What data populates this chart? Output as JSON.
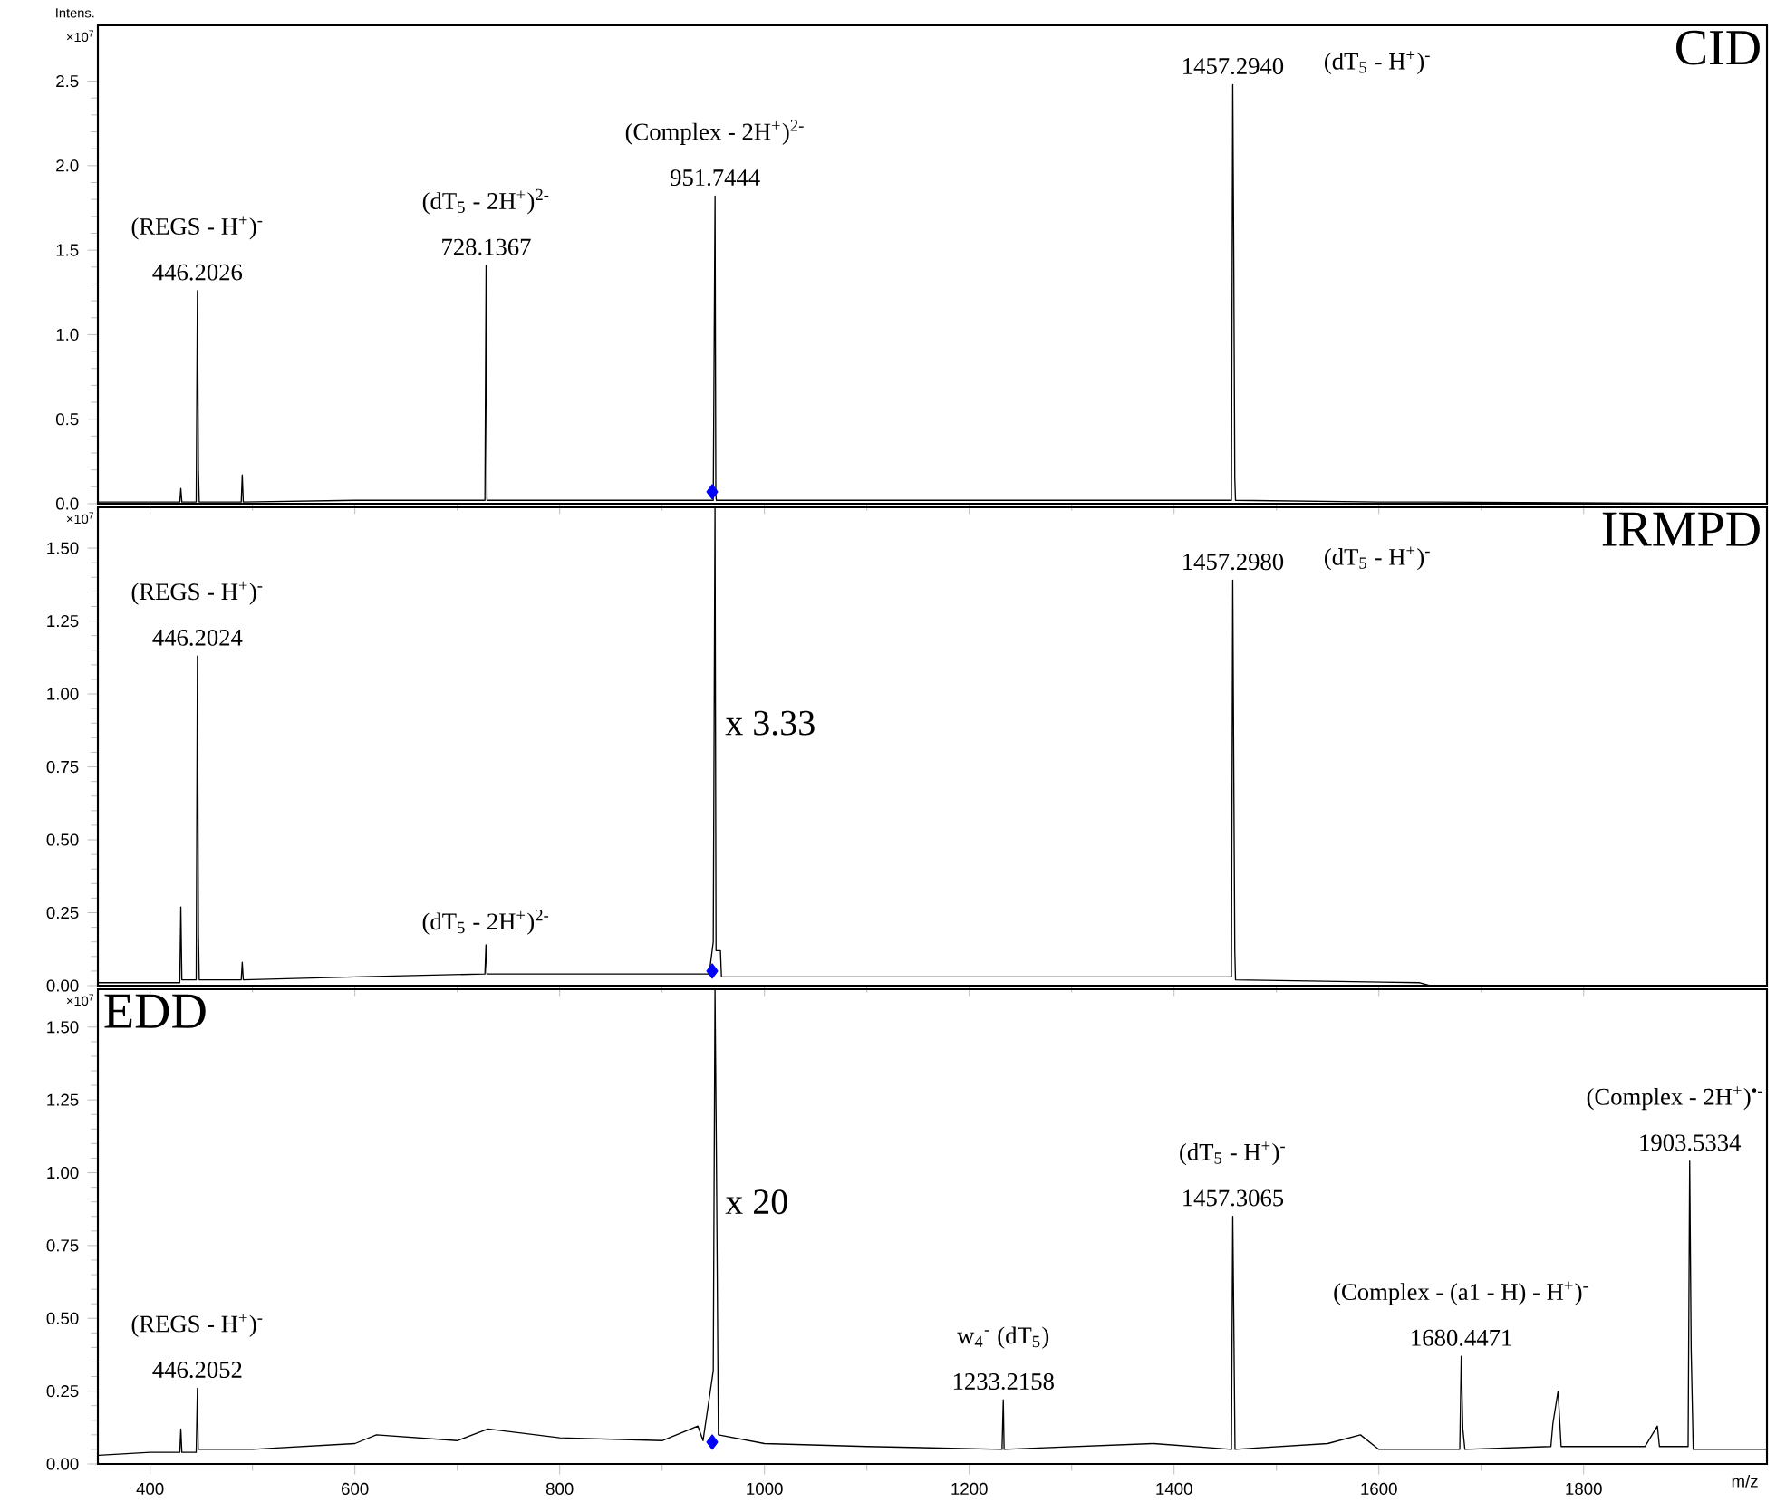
{
  "chart_data": [
    {
      "type": "line",
      "title": "CID",
      "ylabel": "Intens.",
      "xlim": [
        349,
        1979
      ],
      "ylim": [
        0,
        2.83
      ],
      "tick_labels": "y",
      "xticks": [
        400,
        600,
        800,
        1000,
        1200,
        1400,
        1600,
        1800
      ],
      "yticks": [
        {
          "value": 0,
          "label": "0.0"
        },
        {
          "value": 0.5,
          "label": "0.5"
        },
        {
          "value": 1,
          "label": "1.0"
        },
        {
          "value": 1.5,
          "label": "1.5"
        },
        {
          "value": 2,
          "label": "2.0"
        },
        {
          "value": 2.5,
          "label": "2.5"
        }
      ],
      "series": [
        {
          "color": "#000000",
          "x": [
            350,
            380,
            429,
            430,
            431,
            445,
            446.2026,
            447.2,
            448,
            489,
            490,
            491,
            600,
            727,
            728.1367,
            729,
            850,
            950,
            951.7444,
            952.5,
            953,
            1100,
            1456,
            1457.294,
            1458.3,
            1459.3,
            1460,
            1600,
            1650,
            1979
          ],
          "values": [
            0.01,
            0.01,
            0.01,
            0.09,
            0.01,
            0.01,
            1.26,
            0.2,
            0.01,
            0.01,
            0.17,
            0.01,
            0.02,
            0.02,
            1.41,
            0.02,
            0.02,
            0.02,
            1.82,
            0.05,
            0.02,
            0.02,
            0.02,
            2.48,
            1.45,
            0.15,
            0.02,
            0.01,
            0.01,
            0
          ]
        },
        {
          "type": "scatter",
          "color": "#0000ff",
          "marker": "diamond",
          "x": [
            949
          ],
          "values": [
            0.07
          ]
        }
      ],
      "annotations": [
        "×10$^{7}$",
        {
          "text": "446.2026",
          "x": 446.2026,
          "y": 1.26
        },
        {
          "text": "(REGS - H$^{+}$)$^{-}$",
          "x": 446.2026,
          "y": 1.26
        },
        {
          "text": "728.1367",
          "x": 728.1367,
          "y": 1.41
        },
        {
          "text": "(dT$_{5}$ - 2H$^{+}$)$^{2-}$",
          "x": 728.1367,
          "y": 1.41
        },
        {
          "text": "951.7444",
          "x": 951.7444,
          "y": 1.82
        },
        {
          "text": "(Complex - 2H$^{+}$)$^{2-}$",
          "x": 951.7444,
          "y": 1.82
        },
        {
          "text": "1457.2940",
          "x": 1457.294,
          "y": 2.48
        },
        "(dT$_{5}$ - H$^{+}$)$^{-}$"
      ]
    },
    {
      "type": "line",
      "title": "IRMPD",
      "xlim": [
        349,
        1979
      ],
      "ylim": [
        0,
        1.64
      ],
      "tick_labels": "y",
      "xticks": [
        400,
        600,
        800,
        1000,
        1200,
        1400,
        1600,
        1800
      ],
      "yticks": [
        {
          "value": 0,
          "label": "0.00"
        },
        {
          "value": 0.25,
          "label": "0.25"
        },
        {
          "value": 0.5,
          "label": "0.50"
        },
        {
          "value": 0.75,
          "label": "0.75"
        },
        {
          "value": 1,
          "label": "1.00"
        },
        {
          "value": 1.25,
          "label": "1.25"
        },
        {
          "value": 1.5,
          "label": "1.50"
        }
      ],
      "series": [
        {
          "color": "#000000",
          "x": [
            350,
            429,
            430,
            431,
            445,
            446.2024,
            447.2,
            448,
            489,
            490,
            491,
            600,
            727,
            728,
            729,
            850,
            946,
            950,
            951.7,
            952.7,
            957,
            958,
            1100,
            1456,
            1457.298,
            1458.3,
            1459.3,
            1460,
            1640,
            1650,
            1979
          ],
          "values": [
            0.01,
            0.01,
            0.27,
            0.02,
            0.02,
            1.13,
            0.18,
            0.02,
            0.02,
            0.08,
            0.02,
            0.03,
            0.04,
            0.14,
            0.04,
            0.04,
            0.04,
            0.15,
            1.64,
            0.12,
            0.12,
            0.03,
            0.03,
            0.03,
            1.39,
            0.74,
            0.12,
            0.02,
            0.01,
            0,
            0
          ]
        },
        {
          "type": "scatter",
          "color": "#0000ff",
          "marker": "diamond",
          "x": [
            949
          ],
          "values": [
            0.05
          ]
        }
      ],
      "annotations": [
        "×10$^{7}$",
        {
          "text": "446.2024",
          "x": 446.2024,
          "y": 1.13
        },
        {
          "text": "(REGS - H$^{+}$)$^{-}$",
          "x": 446.2024,
          "y": 1.13
        },
        {
          "text": "(dT$_{5}$ - 2H$^{+}$)$^{2-}$",
          "x": 728,
          "y": 0.14
        },
        {
          "text": "x 3.33",
          "x": 951.7,
          "y": 0.9
        },
        {
          "text": "1457.2980",
          "x": 1457.298,
          "y": 1.39
        },
        "(dT$_{5}$ - H$^{+}$)$^{-}$"
      ]
    },
    {
      "type": "line",
      "title": "EDD",
      "xlabel": "m/z",
      "xlim": [
        349,
        1979
      ],
      "ylim": [
        0,
        1.63
      ],
      "xticks": [
        400,
        600,
        800,
        1000,
        1200,
        1400,
        1600,
        1800
      ],
      "yticks": [
        {
          "value": 0,
          "label": "0.00"
        },
        {
          "value": 0.25,
          "label": "0.25"
        },
        {
          "value": 0.5,
          "label": "0.50"
        },
        {
          "value": 0.75,
          "label": "0.75"
        },
        {
          "value": 1,
          "label": "1.00"
        },
        {
          "value": 1.25,
          "label": "1.25"
        },
        {
          "value": 1.5,
          "label": "1.50"
        }
      ],
      "series": [
        {
          "color": "#000000",
          "x": [
            350,
            400,
            429,
            430,
            431,
            445,
            446.2052,
            447,
            500,
            600,
            621,
            700,
            730,
            800,
            900,
            935,
            940,
            950,
            951.7,
            953,
            955,
            1000,
            1100,
            1232,
            1233.2158,
            1234,
            1380,
            1456,
            1457.3065,
            1458.3,
            1459.5,
            1550,
            1582,
            1600,
            1679,
            1680.4471,
            1682,
            1684,
            1768,
            1770,
            1775,
            1778,
            1860,
            1872,
            1874,
            1902,
            1903.5334,
            1905,
            1907,
            1979
          ],
          "values": [
            0.03,
            0.04,
            0.04,
            0.12,
            0.04,
            0.04,
            0.26,
            0.05,
            0.05,
            0.07,
            0.1,
            0.08,
            0.12,
            0.09,
            0.08,
            0.13,
            0.08,
            0.32,
            1.63,
            1.08,
            0.1,
            0.07,
            0.06,
            0.05,
            0.22,
            0.05,
            0.07,
            0.05,
            0.85,
            0.5,
            0.05,
            0.07,
            0.1,
            0.05,
            0.05,
            0.37,
            0.12,
            0.05,
            0.06,
            0.14,
            0.25,
            0.06,
            0.06,
            0.13,
            0.06,
            0.06,
            1.04,
            0.39,
            0.05,
            0.05
          ]
        },
        {
          "type": "scatter",
          "color": "#0000ff",
          "marker": "diamond",
          "x": [
            949
          ],
          "values": [
            0.075
          ]
        }
      ],
      "annotations": [
        "×10$^{7}$",
        {
          "text": "446.2052",
          "x": 446.2052,
          "y": 0.26
        },
        {
          "text": "(REGS - H$^{+}$)$^{-}$",
          "x": 446.2052,
          "y": 0.26
        },
        {
          "text": "x 20",
          "x": 951.7,
          "y": 0.9
        },
        {
          "text": "1233.2158",
          "x": 1233.2158,
          "y": 0.22
        },
        {
          "text": "w$_{4}$$^{-}$ (dT$_{5}$)",
          "x": 1233.2158,
          "y": 0.22
        },
        {
          "text": "1457.3065",
          "x": 1457.3065,
          "y": 0.85
        },
        {
          "text": "(dT$_{5}$ - H$^{+}$)$^{-}$",
          "x": 1457.3065,
          "y": 0.85
        },
        {
          "text": "1680.4471",
          "x": 1680.4471,
          "y": 0.37
        },
        {
          "text": "(Complex - (a1 - H) - H$^{+}$)$^{-}$",
          "x": 1680.4471,
          "y": 0.37
        },
        {
          "text": "1903.5334",
          "x": 1903.5334,
          "y": 1.04
        },
        {
          "text": "(Complex - 2H$^{+}$)$^{•-}$",
          "x": 1903.5334,
          "y": 1.04
        }
      ]
    }
  ]
}
